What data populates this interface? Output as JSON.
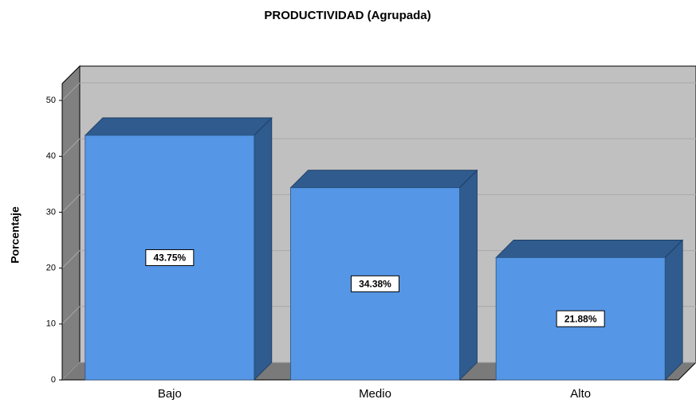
{
  "chart_data": {
    "type": "bar",
    "title": "PRODUCTIVIDAD (Agrupada)",
    "ylabel": "Porcentaje",
    "categories": [
      "Bajo",
      "Medio",
      "Alto"
    ],
    "values": [
      43.75,
      34.38,
      21.88
    ],
    "value_labels": [
      "43.75%",
      "34.38%",
      "21.88%"
    ],
    "color": "#5596e6",
    "ylim": [
      0,
      53
    ],
    "yticks": [
      0,
      10,
      20,
      30,
      40,
      50
    ],
    "grid": true
  }
}
